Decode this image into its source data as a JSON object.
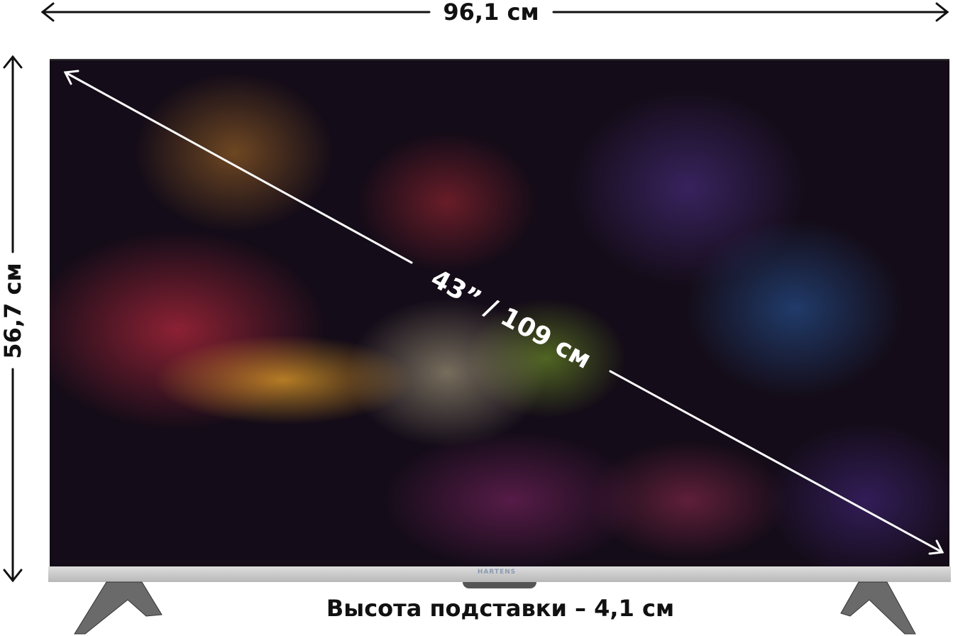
{
  "dimensions": {
    "width_label": "96,1 см",
    "height_label": "56,7 см",
    "diagonal_label": "43” / 109 см",
    "stand_height_label": "Высота подставки – 4,1 см"
  },
  "tv": {
    "brand_logo": "HARTENS"
  }
}
